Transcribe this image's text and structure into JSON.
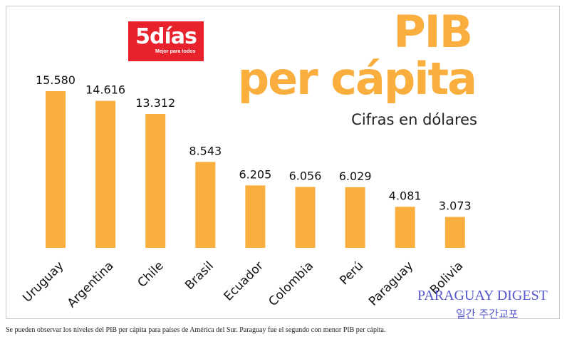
{
  "logo": {
    "name": "5días",
    "tagline": "Mejor para todos"
  },
  "watermark": {
    "line1": "PARAGUAY DIGEST",
    "line2": "일간 주간교포"
  },
  "caption": "Se pueden observar los niveles del PIB per cápita para países de América del Sur. Paraguay fue el segundo con menor PIB per cápita.",
  "chart_data": {
    "type": "bar",
    "title_line1": "PIB",
    "title_line2": "per cápita",
    "subtitle": "Cifras en dólares",
    "categories": [
      "Uruguay",
      "Argentina",
      "Chile",
      "Brasil",
      "Ecuador",
      "Colombia",
      "Perú",
      "Paraguay",
      "Bolivia"
    ],
    "values": [
      15580,
      14616,
      13312,
      8543,
      6205,
      6056,
      6029,
      4081,
      3073
    ],
    "value_labels": [
      "15.580",
      "14.616",
      "13.312",
      "8.543",
      "6.205",
      "6.056",
      "6.029",
      "4.081",
      "3.073"
    ],
    "xlabel": "",
    "ylabel": "",
    "ylim": [
      0,
      15580
    ],
    "grid": false,
    "legend": "none",
    "bar_color": "#F9AE3D"
  }
}
